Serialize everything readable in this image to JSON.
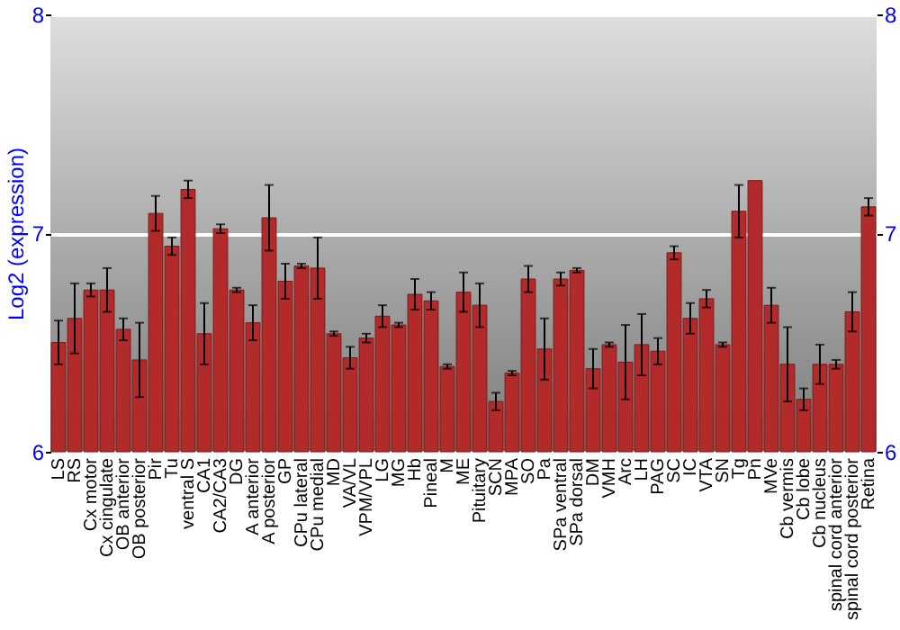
{
  "chart_data": {
    "type": "bar",
    "ylabel": "Log2 (expression)",
    "categories": [
      "LS",
      "RS",
      "Cx motor",
      "Cx cingulate",
      "OB anterior",
      "OB posterior",
      "Pir",
      "Tu",
      "ventral S",
      "CA1",
      "CA2/CA3",
      "DG",
      "A anterior",
      "A posterior",
      "GP",
      "CPu lateral",
      "CPu medial",
      "MD",
      "VA/VL",
      "VPM/VPL",
      "LG",
      "MG",
      "Hb",
      "Pineal",
      "M",
      "ME",
      "Pituitary",
      "SCN",
      "MPA",
      "SO",
      "Pa",
      "SPa ventral",
      "SPa dorsal",
      "DM",
      "VMH",
      "Arc",
      "LH",
      "PAG",
      "SC",
      "IC",
      "VTA",
      "SN",
      "Tg",
      "Pn",
      "MVe",
      "Cb vermis",
      "Cb lobe",
      "Cb nucleus",
      "spinal cord anterior",
      "spinal cord posterior",
      "Retina"
    ],
    "values": [
      6.5,
      6.61,
      6.74,
      6.74,
      6.56,
      6.42,
      7.09,
      6.94,
      7.2,
      6.54,
      7.02,
      6.74,
      6.59,
      7.07,
      6.78,
      6.85,
      6.84,
      6.54,
      6.43,
      6.52,
      6.62,
      6.58,
      6.72,
      6.69,
      6.39,
      6.73,
      6.67,
      6.23,
      6.36,
      6.79,
      6.47,
      6.79,
      6.83,
      6.38,
      6.49,
      6.41,
      6.49,
      6.46,
      6.91,
      6.61,
      6.7,
      6.49,
      7.1,
      7.24,
      6.67,
      6.4,
      6.24,
      6.4,
      6.4,
      6.64,
      7.12
    ],
    "errors": [
      0.1,
      0.16,
      0.03,
      0.1,
      0.05,
      0.17,
      0.08,
      0.04,
      0.04,
      0.14,
      0.02,
      0.01,
      0.08,
      0.15,
      0.08,
      0.01,
      0.14,
      0.01,
      0.05,
      0.02,
      0.05,
      0.01,
      0.07,
      0.04,
      0.01,
      0.09,
      0.1,
      0.04,
      0.01,
      0.06,
      0.14,
      0.03,
      0.01,
      0.09,
      0.01,
      0.17,
      0.14,
      0.06,
      0.03,
      0.07,
      0.04,
      0.01,
      0.12,
      null,
      0.08,
      0.17,
      0.05,
      0.09,
      0.02,
      0.09,
      0.04
    ],
    "color": "#b22a2a",
    "ylim": [
      6,
      8
    ],
    "yticks": [
      6,
      7,
      8
    ],
    "y2lim": [
      6,
      8
    ],
    "y2ticks": [
      6,
      7,
      8
    ],
    "grid": "y"
  }
}
